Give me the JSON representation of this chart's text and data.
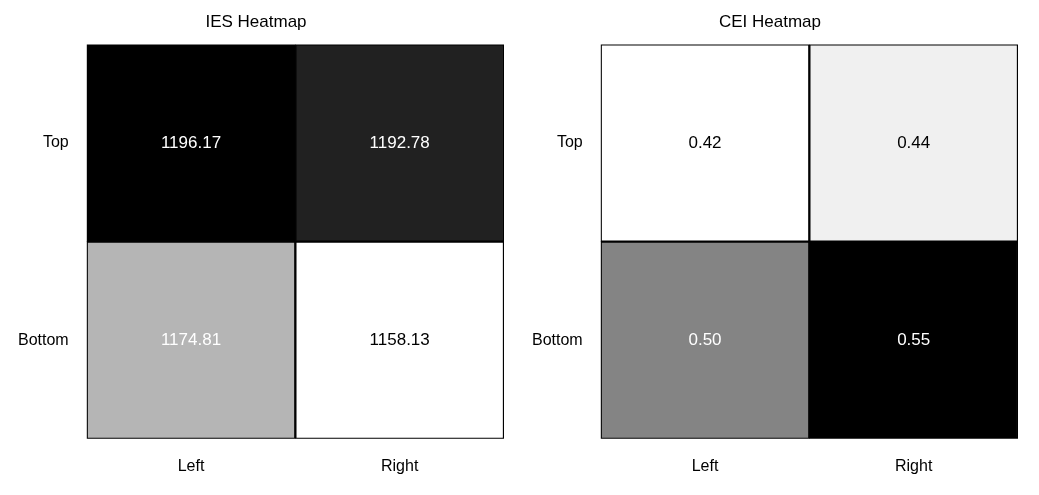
{
  "chart_data": [
    {
      "type": "heatmap",
      "title": "IES Heatmap",
      "categories": [
        "Left",
        "Right"
      ],
      "y_categories": [
        "Top",
        "Bottom"
      ],
      "cells": [
        [
          1196.17,
          1192.78
        ],
        [
          1174.81,
          1158.13
        ]
      ],
      "data_labels": true
    },
    {
      "type": "heatmap",
      "title": "CEI Heatmap",
      "categories": [
        "Left",
        "Right"
      ],
      "y_categories": [
        "Top",
        "Bottom"
      ],
      "cells": [
        [
          0.42,
          0.44
        ],
        [
          0.5,
          0.55
        ]
      ],
      "cell_labels": [
        [
          "0.42",
          "0.44"
        ],
        [
          "0.50",
          "0.55"
        ]
      ],
      "data_labels": true
    }
  ]
}
